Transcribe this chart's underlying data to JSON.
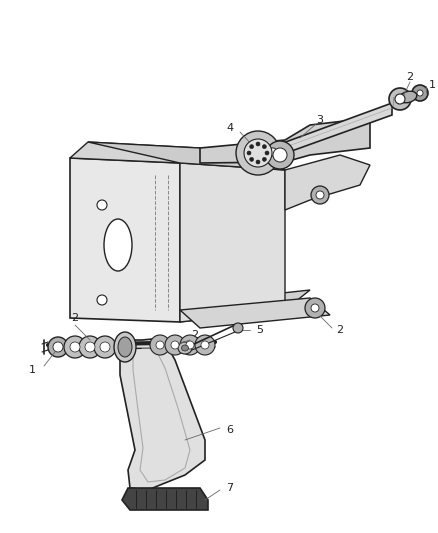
{
  "bg_color": "#ffffff",
  "line_color": "#222222",
  "fill_light": "#e8e8e8",
  "fill_mid": "#c8c8c8",
  "fill_dark": "#555555",
  "leader_color": "#666666",
  "label_color": "#222222"
}
